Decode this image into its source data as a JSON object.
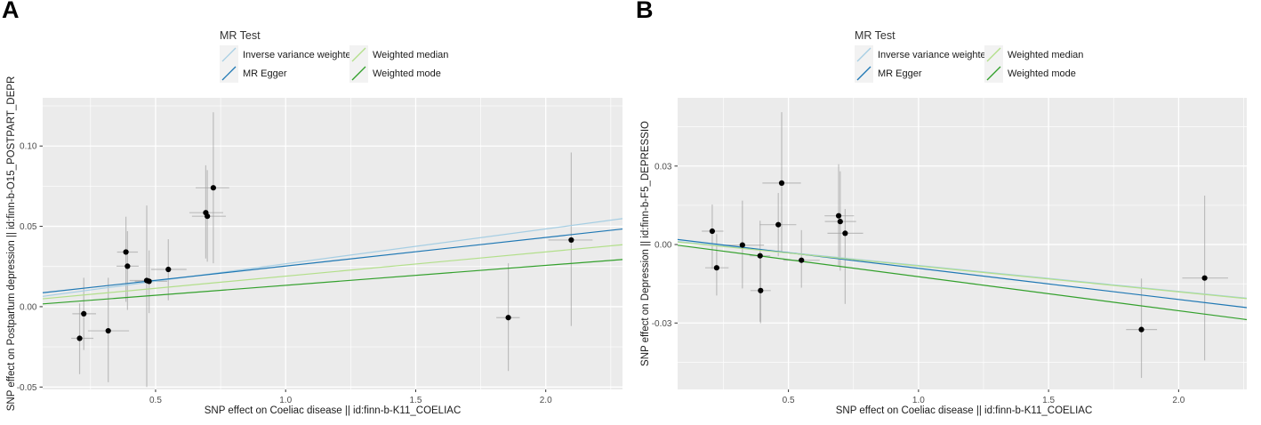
{
  "figure": {
    "panels": [
      {
        "label": "A",
        "legend": {
          "title": "MR Test",
          "items": [
            {
              "label": "Inverse variance weighted",
              "color": "#a6cee3"
            },
            {
              "label": "MR Egger",
              "color": "#1f78b4"
            },
            {
              "label": "Weighted median",
              "color": "#b2df8a"
            },
            {
              "label": "Weighted mode",
              "color": "#33a02c"
            }
          ]
        }
      },
      {
        "label": "B",
        "legend": {
          "title": "MR Test",
          "items": [
            {
              "label": "Inverse variance weighted",
              "color": "#a6cee3"
            },
            {
              "label": "MR Egger",
              "color": "#1f78b4"
            },
            {
              "label": "Weighted median",
              "color": "#b2df8a"
            },
            {
              "label": "Weighted mode",
              "color": "#33a02c"
            }
          ]
        }
      }
    ],
    "colors": {
      "panel_background": "#ebebeb",
      "gridline": "#ffffff",
      "point": "#000000",
      "error_bar": "#9c9c9c",
      "tick_label": "#4d4d4d"
    }
  },
  "chart_data": [
    {
      "type": "scatter",
      "title": "",
      "xlabel": "SNP effect on Coeliac disease || id:finn-b-K11_COELIAC",
      "ylabel": "SNP effect on Postpartum depression || id:finn-b-O15_POSTPART_DEPR",
      "xlim": [
        0.066,
        2.295
      ],
      "ylim": [
        -0.0515,
        0.13
      ],
      "xticks": [
        {
          "v": 0.5,
          "label": "0.5"
        },
        {
          "v": 1.0,
          "label": "1.0"
        },
        {
          "v": 1.5,
          "label": "1.5"
        },
        {
          "v": 2.0,
          "label": "2.0"
        }
      ],
      "yticks": [
        {
          "v": -0.05,
          "label": "-0.05"
        },
        {
          "v": 0.0,
          "label": "0.00"
        },
        {
          "v": 0.05,
          "label": "0.05"
        },
        {
          "v": 0.1,
          "label": "0.10"
        }
      ],
      "xminor": [
        0.25,
        0.75,
        1.25,
        1.75,
        2.25
      ],
      "yminor": [
        -0.025,
        0.025,
        0.075,
        0.125
      ],
      "legend_position": "top",
      "grid": "on",
      "points": [
        {
          "x": 0.208,
          "y": -0.0197,
          "xlo": 0.176,
          "xhi": 0.261,
          "ylo": -0.042,
          "yhi": 0.002
        },
        {
          "x": 0.224,
          "y": -0.0044,
          "xlo": 0.18,
          "xhi": 0.271,
          "ylo": -0.027,
          "yhi": 0.018
        },
        {
          "x": 0.318,
          "y": -0.015,
          "xlo": 0.24,
          "xhi": 0.398,
          "ylo": -0.047,
          "yhi": 0.018
        },
        {
          "x": 0.386,
          "y": 0.034,
          "xlo": 0.352,
          "xhi": 0.432,
          "ylo": 0.003,
          "yhi": 0.056
        },
        {
          "x": 0.392,
          "y": 0.0252,
          "xlo": 0.35,
          "xhi": 0.435,
          "ylo": -0.002,
          "yhi": 0.047
        },
        {
          "x": 0.466,
          "y": 0.0163,
          "xlo": 0.4,
          "xhi": 0.53,
          "ylo": -0.05,
          "yhi": 0.063
        },
        {
          "x": 0.475,
          "y": 0.0158,
          "xlo": 0.42,
          "xhi": 0.545,
          "ylo": -0.004,
          "yhi": 0.035
        },
        {
          "x": 0.549,
          "y": 0.0232,
          "xlo": 0.483,
          "xhi": 0.619,
          "ylo": 0.004,
          "yhi": 0.042
        },
        {
          "x": 0.693,
          "y": 0.0585,
          "xlo": 0.63,
          "xhi": 0.76,
          "ylo": 0.03,
          "yhi": 0.088
        },
        {
          "x": 0.699,
          "y": 0.0563,
          "xlo": 0.64,
          "xhi": 0.77,
          "ylo": 0.028,
          "yhi": 0.085
        },
        {
          "x": 0.722,
          "y": 0.074,
          "xlo": 0.654,
          "xhi": 0.783,
          "ylo": 0.027,
          "yhi": 0.121
        },
        {
          "x": 1.856,
          "y": -0.0068,
          "xlo": 1.81,
          "xhi": 1.9,
          "ylo": -0.04,
          "yhi": 0.027
        },
        {
          "x": 2.098,
          "y": 0.0415,
          "xlo": 2.01,
          "xhi": 2.18,
          "ylo": -0.012,
          "yhi": 0.096
        }
      ],
      "lines": [
        {
          "name": "Inverse variance weighted",
          "color": "#a6cee3",
          "intercept": 0.005,
          "slope": 0.0217
        },
        {
          "name": "MR Egger",
          "color": "#1f78b4",
          "intercept": 0.0075,
          "slope": 0.0178
        },
        {
          "name": "Weighted median",
          "color": "#b2df8a",
          "intercept": 0.0039,
          "slope": 0.0151
        },
        {
          "name": "Weighted mode",
          "color": "#33a02c",
          "intercept": 0.0009,
          "slope": 0.0124
        }
      ]
    },
    {
      "type": "scatter",
      "title": "",
      "xlabel": "SNP effect on Coeliac disease || id:finn-b-K11_COELIAC",
      "ylabel": "SNP effect on Depression || id:finn-b-F5_DEPRESSIO",
      "xlim": [
        0.074,
        2.262
      ],
      "ylim": [
        -0.0554,
        0.0561
      ],
      "xticks": [
        {
          "v": 0.5,
          "label": "0.5"
        },
        {
          "v": 1.0,
          "label": "1.0"
        },
        {
          "v": 1.5,
          "label": "1.5"
        },
        {
          "v": 2.0,
          "label": "2.0"
        }
      ],
      "yticks": [
        {
          "v": -0.03,
          "label": "-0.03"
        },
        {
          "v": 0.0,
          "label": "0.00"
        },
        {
          "v": 0.03,
          "label": "0.03"
        }
      ],
      "xminor": [
        0.25,
        0.75,
        1.25,
        1.75,
        2.25
      ],
      "yminor": [
        -0.045,
        -0.015,
        0.015,
        0.045
      ],
      "legend_position": "top",
      "grid": "on",
      "points": [
        {
          "x": 0.207,
          "y": 0.0051,
          "xlo": 0.167,
          "xhi": 0.25,
          "ylo": -0.0093,
          "yhi": 0.0153
        },
        {
          "x": 0.224,
          "y": -0.0089,
          "xlo": 0.18,
          "xhi": 0.27,
          "ylo": -0.0195,
          "yhi": 0.004
        },
        {
          "x": 0.323,
          "y": -0.0002,
          "xlo": 0.238,
          "xhi": 0.406,
          "ylo": -0.0168,
          "yhi": 0.0168
        },
        {
          "x": 0.391,
          "y": -0.0043,
          "xlo": 0.35,
          "xhi": 0.43,
          "ylo": -0.0295,
          "yhi": 0.0091
        },
        {
          "x": 0.393,
          "y": -0.0176,
          "xlo": 0.354,
          "xhi": 0.432,
          "ylo": -0.0301,
          "yhi": -0.0045
        },
        {
          "x": 0.461,
          "y": 0.0076,
          "xlo": 0.39,
          "xhi": 0.53,
          "ylo": -0.0045,
          "yhi": 0.0197
        },
        {
          "x": 0.474,
          "y": 0.0235,
          "xlo": 0.4,
          "xhi": 0.548,
          "ylo": -0.0028,
          "yhi": 0.0506
        },
        {
          "x": 0.55,
          "y": -0.006,
          "xlo": 0.48,
          "xhi": 0.62,
          "ylo": -0.0165,
          "yhi": 0.0055
        },
        {
          "x": 0.693,
          "y": 0.011,
          "xlo": 0.639,
          "xhi": 0.752,
          "ylo": -0.0085,
          "yhi": 0.0307
        },
        {
          "x": 0.699,
          "y": 0.0088,
          "xlo": 0.64,
          "xhi": 0.76,
          "ylo": -0.01,
          "yhi": 0.028
        },
        {
          "x": 0.718,
          "y": 0.0043,
          "xlo": 0.65,
          "xhi": 0.787,
          "ylo": -0.0227,
          "yhi": 0.0136
        },
        {
          "x": 1.857,
          "y": -0.0325,
          "xlo": 1.798,
          "xhi": 1.917,
          "ylo": -0.051,
          "yhi": -0.013
        },
        {
          "x": 2.1,
          "y": -0.0128,
          "xlo": 2.014,
          "xhi": 2.19,
          "ylo": -0.0443,
          "yhi": 0.0187
        }
      ],
      "lines": [
        {
          "name": "Inverse variance weighted",
          "color": "#a6cee3",
          "intercept": 0.0019,
          "slope": -0.0099
        },
        {
          "name": "MR Egger",
          "color": "#1f78b4",
          "intercept": 0.0028,
          "slope": -0.0119
        },
        {
          "name": "Weighted median",
          "color": "#b2df8a",
          "intercept": 0.0017,
          "slope": -0.0099
        },
        {
          "name": "Weighted mode",
          "color": "#33a02c",
          "intercept": 0.0007,
          "slope": -0.013
        }
      ]
    }
  ]
}
